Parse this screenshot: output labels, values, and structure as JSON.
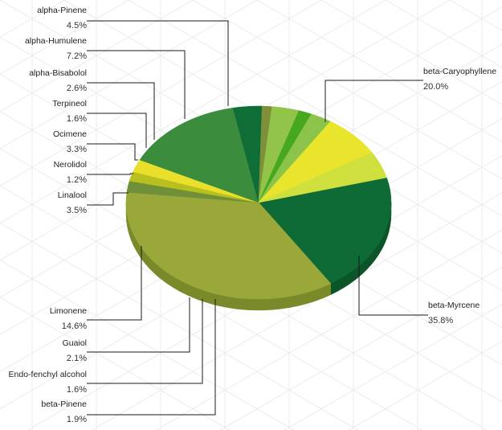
{
  "chart_data": {
    "type": "pie",
    "title": "",
    "style": "3d",
    "legend": "none",
    "categories": [
      "beta-Caryophyllene",
      "beta-Myrcene",
      "beta-Pinene",
      "Endo-fenchyl alcohol",
      "Guaiol",
      "Limonene",
      "Linalool",
      "Nerolidol",
      "Ocimene",
      "Terpineol",
      "alpha-Bisabolol",
      "alpha-Humulene",
      "alpha-Pinene"
    ],
    "values": [
      20.0,
      35.8,
      1.9,
      1.6,
      2.1,
      14.6,
      3.5,
      1.2,
      3.3,
      1.6,
      2.6,
      7.2,
      4.5
    ],
    "value_labels": [
      "20.0%",
      "35.8%",
      "1.9%",
      "1.6%",
      "2.1%",
      "14.6%",
      "3.5%",
      "1.2%",
      "3.3%",
      "1.6%",
      "2.6%",
      "7.2%",
      "4.5%"
    ],
    "colors": [
      "#0e6b35",
      "#9aa83a",
      "#6f8f38",
      "#b8c020",
      "#eadf2a",
      "#3c8c3e",
      "#0f6e35",
      "#7f8f3a",
      "#92c44a",
      "#46a81e",
      "#8cc34a",
      "#e9e52c",
      "#cfe03e"
    ],
    "side_colors": [
      "#0b5529",
      "#7a8a2a",
      "#566f2a",
      "#8f9518",
      "#b8ad1e",
      "#2f6d30",
      "#0b5228",
      "#64702c",
      "#75a03a",
      "#368516",
      "#6fa038",
      "#bdb820",
      "#a7b52f"
    ]
  }
}
